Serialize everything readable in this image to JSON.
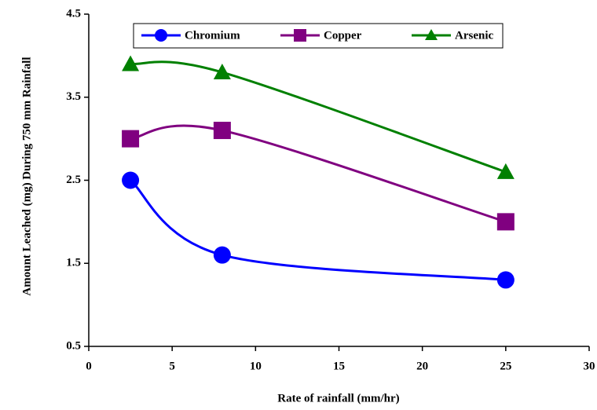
{
  "chart_data": {
    "type": "line",
    "x_label": "Rate of rainfall (mm/hr)",
    "y_label": "Amount Leached (mg) During 750 mm Rainfall",
    "x": [
      2.5,
      8,
      25
    ],
    "series": [
      {
        "name": "Chromium",
        "color": "#0000ff",
        "marker": "circle",
        "values": [
          2.5,
          1.6,
          1.3
        ]
      },
      {
        "name": "Copper",
        "color": "#800080",
        "marker": "square",
        "values": [
          3.0,
          3.1,
          2.0
        ]
      },
      {
        "name": "Arsenic",
        "color": "#008000",
        "marker": "triangle",
        "values": [
          3.9,
          3.8,
          2.6
        ]
      }
    ],
    "xlim": [
      0,
      30
    ],
    "xticks": [
      0,
      5,
      10,
      15,
      20,
      25,
      30
    ],
    "ylim": [
      0.5,
      4.5
    ],
    "yticks": [
      0.5,
      1.5,
      2.5,
      3.5,
      4.5
    ],
    "smooth": true,
    "grid": false,
    "legend": "top"
  }
}
